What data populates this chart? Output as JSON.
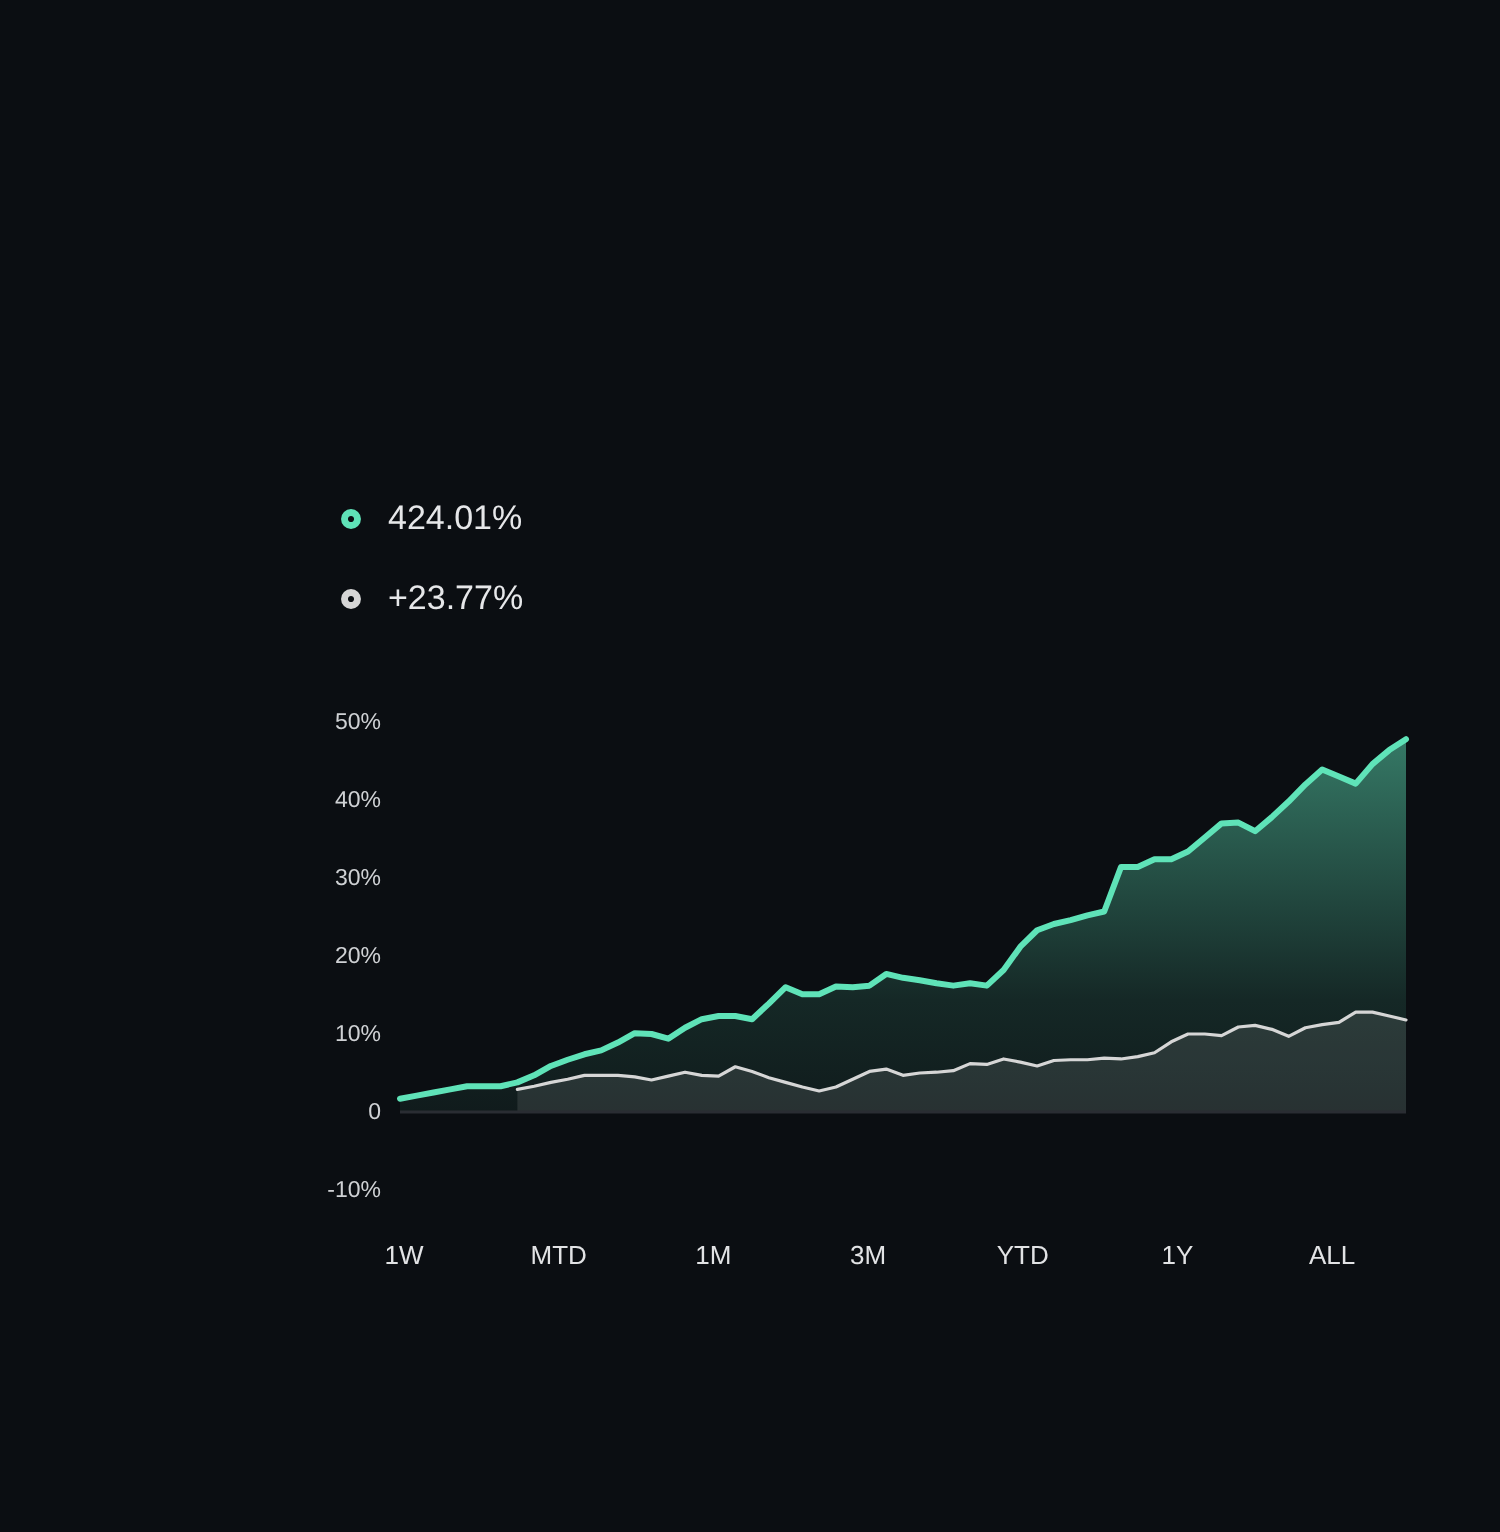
{
  "chart_data": {
    "type": "area",
    "categories": [
      null,
      null,
      null,
      null,
      null,
      null,
      null,
      null,
      null,
      null,
      null,
      null,
      null,
      null,
      null,
      null,
      null,
      null,
      null,
      null,
      null,
      null,
      null,
      null,
      null,
      null,
      null,
      null,
      null,
      null,
      null,
      null,
      null,
      null,
      null,
      null,
      null,
      null,
      null,
      null,
      null,
      null,
      null,
      null,
      null,
      null,
      null,
      null,
      null,
      null,
      null,
      null,
      null,
      null,
      null,
      null,
      null,
      null,
      null,
      null,
      null
    ],
    "series": [
      {
        "name": "424.01%",
        "color": "#5fe3b8",
        "values": [
          1.7,
          2.1,
          2.5,
          2.9,
          3.3,
          3.3,
          3.3,
          3.8,
          4.7,
          5.9,
          6.7,
          7.4,
          7.9,
          8.9,
          10.1,
          10.0,
          9.4,
          10.8,
          11.9,
          12.3,
          12.3,
          11.9,
          13.9,
          16.0,
          15.1,
          15.1,
          16.1,
          16.0,
          16.2,
          17.7,
          17.2,
          16.9,
          16.5,
          16.2,
          16.5,
          16.2,
          18.2,
          21.2,
          23.3,
          24.1,
          24.6,
          25.2,
          25.7,
          31.4,
          31.4,
          32.4,
          32.4,
          33.4,
          35.2,
          37.0,
          37.1,
          36.0,
          37.8,
          39.8,
          42.0,
          43.9,
          43.0,
          42.1,
          44.6,
          46.4,
          47.8
        ]
      },
      {
        "name": "+23.77%",
        "color": "#d6d6d6",
        "values": [
          null,
          null,
          null,
          null,
          null,
          null,
          null,
          2.9,
          3.3,
          3.8,
          4.2,
          4.7,
          4.7,
          4.7,
          4.5,
          4.1,
          4.6,
          5.1,
          4.7,
          4.6,
          5.8,
          5.2,
          4.4,
          3.8,
          3.2,
          2.7,
          3.2,
          4.2,
          5.2,
          5.5,
          4.7,
          5.0,
          5.1,
          5.3,
          6.2,
          6.1,
          6.8,
          6.4,
          5.9,
          6.6,
          6.7,
          6.7,
          6.9,
          6.8,
          7.1,
          7.6,
          9.0,
          10.0,
          10.0,
          9.8,
          10.9,
          11.1,
          10.6,
          9.7,
          10.8,
          11.2,
          11.5,
          12.8,
          12.8,
          12.3,
          11.8
        ]
      }
    ],
    "ylim": [
      -10,
      50
    ],
    "yticks": [
      {
        "value": 50,
        "label": "50%"
      },
      {
        "value": 40,
        "label": "40%"
      },
      {
        "value": 30,
        "label": "30%"
      },
      {
        "value": 20,
        "label": "20%"
      },
      {
        "value": 10,
        "label": "10%"
      },
      0,
      {
        "value": -10,
        "label": "-10%"
      }
    ],
    "ref_lines": [
      {
        "axis": "y",
        "value": 0,
        "color": "#2a2d33"
      }
    ],
    "grid": false,
    "tick_labels": "y",
    "legend": "top left",
    "annotations": [
      "1W",
      "MTD",
      "1M",
      "3M",
      "YTD",
      "1Y",
      "ALL"
    ]
  }
}
